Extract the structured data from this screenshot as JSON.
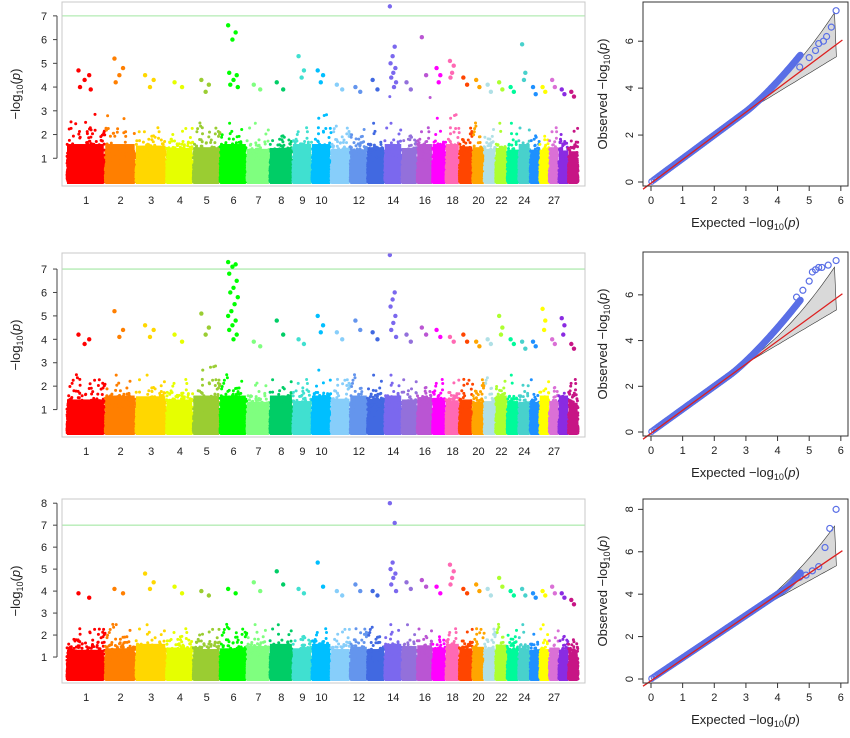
{
  "colors": {
    "chromosomes": [
      "#ff0000",
      "#ff7f00",
      "#ffd700",
      "#e6ff00",
      "#9acd32",
      "#00ff00",
      "#7fff7f",
      "#00cd66",
      "#40e0d0",
      "#00bfff",
      "#87cefa",
      "#6495ed",
      "#4169e1",
      "#7b68ee",
      "#9370db",
      "#ba55d3",
      "#ff00ff",
      "#ff69b4",
      "#ff4500",
      "#ffa500",
      "#b0e0e6",
      "#adff2f",
      "#00fa9a",
      "#48d1cc",
      "#1e90ff",
      "#ffff00",
      "#da70d6",
      "#8a2be2",
      "#c71585"
    ],
    "threshold_line": "#b4ecb4",
    "qq_points": "#5a6fe6",
    "qq_expected_line": "#dd1f1f",
    "qq_band": "#d9d9d9"
  },
  "chart_data": [
    {
      "type": "scatter",
      "subtype": "manhattan",
      "panel": "top-left",
      "ylabel": "-log10(p)",
      "xlabel": "",
      "xtick_labels": [
        "1",
        "2",
        "3",
        "4",
        "5",
        "6",
        "7",
        "8",
        "9",
        "10",
        "12",
        "14",
        "16",
        "18",
        "20",
        "22",
        "24",
        "27"
      ],
      "xtick_chromosomes": [
        1,
        2,
        3,
        4,
        5,
        6,
        7,
        8,
        9,
        10,
        12,
        14,
        16,
        18,
        20,
        22,
        24,
        27
      ],
      "yticks": [
        1,
        2,
        3,
        4,
        5,
        6,
        7
      ],
      "ylim": [
        0,
        7.5
      ],
      "threshold": 7,
      "chromosomes": 29,
      "peaks": [
        {
          "chr": 1,
          "values": [
            4.7,
            4.5,
            4.3,
            4.0,
            3.9
          ]
        },
        {
          "chr": 2,
          "values": [
            5.2,
            4.8,
            4.5,
            4.2
          ]
        },
        {
          "chr": 3,
          "values": [
            4.5,
            4.3,
            4.0
          ]
        },
        {
          "chr": 4,
          "values": [
            4.2,
            4.0
          ]
        },
        {
          "chr": 5,
          "values": [
            4.3,
            4.1,
            3.8
          ]
        },
        {
          "chr": 6,
          "values": [
            6.6,
            6.3,
            6.0,
            4.6,
            4.5,
            4.3,
            4.1,
            4.0
          ]
        },
        {
          "chr": 7,
          "values": [
            4.1,
            3.9
          ]
        },
        {
          "chr": 8,
          "values": [
            4.2,
            3.9
          ]
        },
        {
          "chr": 9,
          "values": [
            5.3,
            4.7,
            4.4
          ]
        },
        {
          "chr": 10,
          "values": [
            4.7,
            4.5,
            4.2
          ]
        },
        {
          "chr": 11,
          "values": [
            4.1,
            3.9
          ]
        },
        {
          "chr": 12,
          "values": [
            4.0,
            3.8
          ]
        },
        {
          "chr": 13,
          "values": [
            4.3,
            3.9
          ]
        },
        {
          "chr": 14,
          "values": [
            7.4,
            5.7,
            5.3,
            5.0,
            4.8,
            4.6,
            4.4,
            4.2,
            4.0
          ]
        },
        {
          "chr": 15,
          "values": [
            4.2,
            3.9
          ]
        },
        {
          "chr": 16,
          "values": [
            6.1,
            4.5
          ]
        },
        {
          "chr": 17,
          "values": [
            4.8,
            4.5,
            4.2
          ]
        },
        {
          "chr": 18,
          "values": [
            5.1,
            4.9,
            4.6,
            4.4
          ]
        },
        {
          "chr": 19,
          "values": [
            4.4,
            4.1
          ]
        },
        {
          "chr": 20,
          "values": [
            4.3,
            4.0
          ]
        },
        {
          "chr": 21,
          "values": [
            4.1,
            3.8
          ]
        },
        {
          "chr": 22,
          "values": [
            4.2,
            3.9
          ]
        },
        {
          "chr": 23,
          "values": [
            4.0,
            3.8
          ]
        },
        {
          "chr": 24,
          "values": [
            5.8,
            4.6,
            4.3
          ]
        },
        {
          "chr": 25,
          "values": [
            4.0,
            3.7
          ]
        },
        {
          "chr": 26,
          "values": [
            4.0,
            3.8
          ]
        },
        {
          "chr": 27,
          "values": [
            4.3,
            4.0
          ]
        },
        {
          "chr": 28,
          "values": [
            3.9,
            3.7
          ]
        },
        {
          "chr": 29,
          "values": [
            3.8,
            3.6
          ]
        }
      ]
    },
    {
      "type": "scatter",
      "subtype": "qq",
      "panel": "top-right",
      "xlabel": "Expected  -log10(p)",
      "ylabel": "Observed  -log10(p)",
      "xticks": [
        0,
        1,
        2,
        3,
        4,
        5,
        6
      ],
      "yticks": [
        0,
        2,
        4,
        6
      ],
      "xlim": [
        0,
        6
      ],
      "ylim": [
        0,
        7.5
      ],
      "deviation_start": 3.0,
      "deviation_end": 1.5,
      "tail_points": [
        [
          4.7,
          4.9
        ],
        [
          5.0,
          5.3
        ],
        [
          5.2,
          5.6
        ],
        [
          5.3,
          5.9
        ],
        [
          5.45,
          6.0
        ],
        [
          5.55,
          6.2
        ],
        [
          5.7,
          6.6
        ],
        [
          5.85,
          7.3
        ]
      ]
    },
    {
      "type": "scatter",
      "subtype": "manhattan",
      "panel": "middle-left",
      "ylabel": "-log10(p)",
      "xlabel": "",
      "xtick_labels": [
        "1",
        "2",
        "3",
        "4",
        "5",
        "6",
        "7",
        "8",
        "9",
        "10",
        "12",
        "14",
        "16",
        "18",
        "20",
        "22",
        "24",
        "27"
      ],
      "xtick_chromosomes": [
        1,
        2,
        3,
        4,
        5,
        6,
        7,
        8,
        9,
        10,
        12,
        14,
        16,
        18,
        20,
        22,
        24,
        27
      ],
      "yticks": [
        1,
        2,
        3,
        4,
        5,
        6,
        7
      ],
      "ylim": [
        0,
        7.6
      ],
      "threshold": 7,
      "chromosomes": 29,
      "peaks": [
        {
          "chr": 1,
          "values": [
            4.2,
            4.0,
            3.8
          ]
        },
        {
          "chr": 2,
          "values": [
            5.2,
            4.4,
            4.1
          ]
        },
        {
          "chr": 3,
          "values": [
            4.6,
            4.4,
            4.1
          ]
        },
        {
          "chr": 4,
          "values": [
            4.2,
            3.9
          ]
        },
        {
          "chr": 5,
          "values": [
            5.1,
            4.5,
            4.2
          ]
        },
        {
          "chr": 6,
          "values": [
            7.3,
            7.2,
            7.1,
            6.8,
            6.5,
            6.2,
            6.0,
            5.8,
            5.5,
            5.2,
            5.0,
            4.8,
            4.6,
            4.4,
            4.2,
            4.0
          ]
        },
        {
          "chr": 7,
          "values": [
            3.9,
            3.7
          ]
        },
        {
          "chr": 8,
          "values": [
            4.8,
            4.2
          ]
        },
        {
          "chr": 9,
          "values": [
            4.0,
            3.8
          ]
        },
        {
          "chr": 10,
          "values": [
            5.0,
            4.6,
            4.3
          ]
        },
        {
          "chr": 11,
          "values": [
            4.3,
            4.0
          ]
        },
        {
          "chr": 12,
          "values": [
            4.8,
            4.4
          ]
        },
        {
          "chr": 13,
          "values": [
            4.3,
            4.0
          ]
        },
        {
          "chr": 14,
          "values": [
            7.6,
            6.0,
            5.7,
            5.4,
            5.0,
            4.7,
            4.4,
            4.1
          ]
        },
        {
          "chr": 15,
          "values": [
            4.2,
            3.9
          ]
        },
        {
          "chr": 16,
          "values": [
            4.5,
            4.2
          ]
        },
        {
          "chr": 17,
          "values": [
            4.4,
            4.1
          ]
        },
        {
          "chr": 18,
          "values": [
            4.1,
            3.9
          ]
        },
        {
          "chr": 19,
          "values": [
            4.2,
            3.9
          ]
        },
        {
          "chr": 20,
          "values": [
            3.9,
            3.7
          ]
        },
        {
          "chr": 21,
          "values": [
            4.0,
            3.8
          ]
        },
        {
          "chr": 22,
          "values": [
            5.0,
            4.5,
            4.2
          ]
        },
        {
          "chr": 23,
          "values": [
            4.0,
            3.8
          ]
        },
        {
          "chr": 24,
          "values": [
            3.9,
            3.6
          ]
        },
        {
          "chr": 25,
          "values": [
            3.9,
            3.7
          ]
        },
        {
          "chr": 26,
          "values": [
            5.3,
            4.8,
            4.4
          ]
        },
        {
          "chr": 27,
          "values": [
            4.0,
            3.8
          ]
        },
        {
          "chr": 28,
          "values": [
            4.9,
            4.6,
            4.2
          ]
        },
        {
          "chr": 29,
          "values": [
            3.8,
            3.6
          ]
        }
      ]
    },
    {
      "type": "scatter",
      "subtype": "qq",
      "panel": "middle-right",
      "xlabel": "Expected  -log10(p)",
      "ylabel": "Observed  -log10(p)",
      "xticks": [
        0,
        1,
        2,
        3,
        4,
        5,
        6
      ],
      "yticks": [
        0,
        2,
        4,
        6
      ],
      "xlim": [
        0,
        6
      ],
      "ylim": [
        0,
        7.7
      ],
      "deviation_start": 2.5,
      "deviation_end": 2.3,
      "tail_points": [
        [
          4.6,
          5.9
        ],
        [
          4.8,
          6.2
        ],
        [
          5.0,
          6.6
        ],
        [
          5.1,
          7.0
        ],
        [
          5.2,
          7.1
        ],
        [
          5.3,
          7.2
        ],
        [
          5.4,
          7.2
        ],
        [
          5.6,
          7.3
        ],
        [
          5.85,
          7.5
        ]
      ]
    },
    {
      "type": "scatter",
      "subtype": "manhattan",
      "panel": "bottom-left",
      "ylabel": "-log10(p)",
      "xlabel": "",
      "xtick_labels": [
        "1",
        "2",
        "3",
        "4",
        "5",
        "6",
        "7",
        "8",
        "9",
        "10",
        "12",
        "14",
        "16",
        "18",
        "20",
        "22",
        "24",
        "27"
      ],
      "xtick_chromosomes": [
        1,
        2,
        3,
        4,
        5,
        6,
        7,
        8,
        9,
        10,
        12,
        14,
        16,
        18,
        20,
        22,
        24,
        27
      ],
      "yticks": [
        1,
        2,
        3,
        4,
        5,
        6,
        7,
        8
      ],
      "ylim": [
        0,
        8.1
      ],
      "threshold": 7,
      "chromosomes": 29,
      "peaks": [
        {
          "chr": 1,
          "values": [
            3.9,
            3.7
          ]
        },
        {
          "chr": 2,
          "values": [
            4.1,
            3.9
          ]
        },
        {
          "chr": 3,
          "values": [
            4.8,
            4.4,
            4.1
          ]
        },
        {
          "chr": 4,
          "values": [
            4.2,
            3.9
          ]
        },
        {
          "chr": 5,
          "values": [
            4.0,
            3.8
          ]
        },
        {
          "chr": 6,
          "values": [
            4.1,
            3.9
          ]
        },
        {
          "chr": 7,
          "values": [
            4.4,
            4.0
          ]
        },
        {
          "chr": 8,
          "values": [
            4.9,
            4.3
          ]
        },
        {
          "chr": 9,
          "values": [
            4.1,
            3.9
          ]
        },
        {
          "chr": 10,
          "values": [
            5.3,
            4.2
          ]
        },
        {
          "chr": 11,
          "values": [
            4.0,
            3.8
          ]
        },
        {
          "chr": 12,
          "values": [
            4.3,
            4.0
          ]
        },
        {
          "chr": 13,
          "values": [
            4.0,
            3.8
          ]
        },
        {
          "chr": 14,
          "values": [
            8.0,
            7.1,
            5.3,
            5.0,
            4.8,
            4.6,
            4.3,
            4.0
          ]
        },
        {
          "chr": 15,
          "values": [
            4.4,
            4.1
          ]
        },
        {
          "chr": 16,
          "values": [
            4.5,
            4.2
          ]
        },
        {
          "chr": 17,
          "values": [
            4.2,
            3.9
          ]
        },
        {
          "chr": 18,
          "values": [
            5.2,
            4.9,
            4.6,
            4.3
          ]
        },
        {
          "chr": 19,
          "values": [
            4.1,
            3.9
          ]
        },
        {
          "chr": 20,
          "values": [
            4.3,
            4.0
          ]
        },
        {
          "chr": 21,
          "values": [
            4.1,
            3.8
          ]
        },
        {
          "chr": 22,
          "values": [
            4.6,
            4.2
          ]
        },
        {
          "chr": 23,
          "values": [
            4.0,
            3.8
          ]
        },
        {
          "chr": 24,
          "values": [
            4.1,
            3.8
          ]
        },
        {
          "chr": 25,
          "values": [
            3.9,
            3.7
          ]
        },
        {
          "chr": 26,
          "values": [
            4.0,
            3.8
          ]
        },
        {
          "chr": 27,
          "values": [
            4.2,
            3.9
          ]
        },
        {
          "chr": 28,
          "values": [
            3.9,
            3.7
          ]
        },
        {
          "chr": 29,
          "values": [
            3.6,
            3.4
          ]
        }
      ]
    },
    {
      "type": "scatter",
      "subtype": "qq",
      "panel": "bottom-right",
      "xlabel": "Expected  -log10(p)",
      "ylabel": "Observed  -log10(p)",
      "xticks": [
        0,
        1,
        2,
        3,
        4,
        5,
        6
      ],
      "yticks": [
        0,
        2,
        4,
        6,
        8
      ],
      "xlim": [
        0,
        6
      ],
      "ylim": [
        0,
        8.3
      ],
      "deviation_start": 4.2,
      "deviation_end": 0.6,
      "tail_points": [
        [
          4.7,
          4.8
        ],
        [
          4.9,
          4.9
        ],
        [
          5.1,
          5.1
        ],
        [
          5.3,
          5.3
        ],
        [
          5.5,
          6.2
        ],
        [
          5.65,
          7.1
        ],
        [
          5.85,
          8.0
        ]
      ]
    }
  ]
}
